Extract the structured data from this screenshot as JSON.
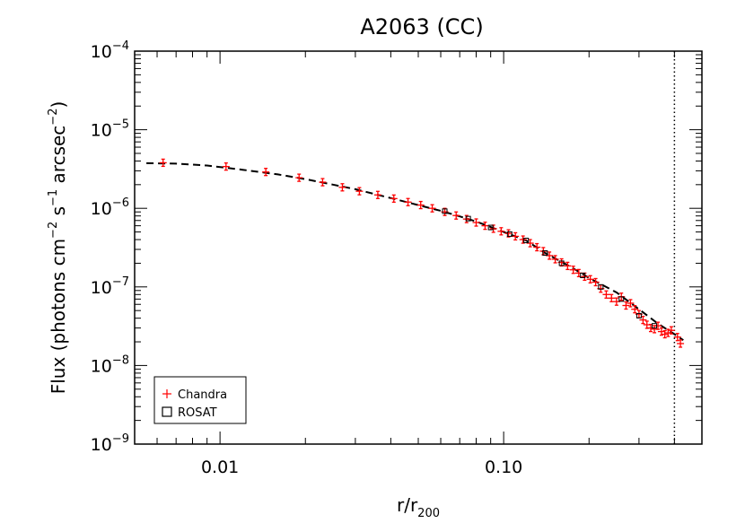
{
  "chart_data": {
    "type": "scatter",
    "title": "A2063 (CC)",
    "xlabel": {
      "main": "r/r",
      "sub": "200"
    },
    "ylabel": {
      "prefix": "Flux (photons cm",
      "e1": "−2",
      "mid1": " s",
      "e2": "−1",
      "mid2": " arcsec",
      "e3": "−2",
      "suffix": ")"
    },
    "x_scale": "log",
    "y_scale": "log",
    "xlim": [
      0.005,
      0.5
    ],
    "ylim": [
      1e-09,
      0.0001
    ],
    "x_ticks": [
      {
        "value": 0.01,
        "label": "0.01"
      },
      {
        "value": 0.1,
        "label": "0.10"
      }
    ],
    "y_ticks": [
      {
        "value": 1e-09,
        "base": "10",
        "exp": "−9"
      },
      {
        "value": 1e-08,
        "base": "10",
        "exp": "−8"
      },
      {
        "value": 1e-07,
        "base": "10",
        "exp": "−7"
      },
      {
        "value": 1e-06,
        "base": "10",
        "exp": "−6"
      },
      {
        "value": 1e-05,
        "base": "10",
        "exp": "−5"
      },
      {
        "value": 0.0001,
        "base": "10",
        "exp": "−4"
      }
    ],
    "vertical_line": {
      "x": 0.4,
      "style": "dotted"
    },
    "legend": {
      "position": "bottom-left",
      "entries": [
        {
          "label": "Chandra",
          "marker": "plus",
          "color": "#ff0000"
        },
        {
          "label": "ROSAT",
          "marker": "square",
          "color": "#000000"
        }
      ]
    },
    "series": [
      {
        "name": "Chandra",
        "marker": "plus",
        "color": "#ff0000",
        "x": [
          0.0063,
          0.0105,
          0.0145,
          0.019,
          0.023,
          0.027,
          0.031,
          0.036,
          0.041,
          0.046,
          0.051,
          0.056,
          0.062,
          0.068,
          0.074,
          0.08,
          0.086,
          0.092,
          0.098,
          0.104,
          0.11,
          0.117,
          0.124,
          0.131,
          0.138,
          0.145,
          0.152,
          0.16,
          0.168,
          0.176,
          0.184,
          0.193,
          0.202,
          0.211,
          0.22,
          0.23,
          0.24,
          0.25,
          0.26,
          0.27,
          0.28,
          0.29,
          0.3,
          0.31,
          0.32,
          0.33,
          0.34,
          0.35,
          0.36,
          0.37,
          0.38,
          0.39,
          0.41,
          0.42
        ],
        "y": [
          3.8e-06,
          3.4e-06,
          2.9e-06,
          2.45e-06,
          2.15e-06,
          1.85e-06,
          1.65e-06,
          1.48e-06,
          1.33e-06,
          1.2e-06,
          1.1e-06,
          1e-06,
          9e-07,
          8.1e-07,
          7.3e-07,
          6.6e-07,
          6e-07,
          5.5e-07,
          5.1e-07,
          4.8e-07,
          4.4e-07,
          4e-07,
          3.6e-07,
          3.2e-07,
          2.85e-07,
          2.5e-07,
          2.25e-07,
          2.05e-07,
          1.85e-07,
          1.65e-07,
          1.5e-07,
          1.35e-07,
          1.25e-07,
          1.15e-07,
          9.5e-08,
          8e-08,
          7.2e-08,
          6.5e-08,
          7.5e-08,
          5.8e-08,
          6.2e-08,
          5.2e-08,
          4.5e-08,
          3.8e-08,
          3.3e-08,
          3e-08,
          2.9e-08,
          3.2e-08,
          2.7e-08,
          2.5e-08,
          2.6e-08,
          2.8e-08,
          2.3e-08,
          1.9e-08
        ]
      },
      {
        "name": "ROSAT",
        "marker": "square",
        "color": "#000000",
        "x": [
          0.062,
          0.075,
          0.09,
          0.105,
          0.12,
          0.14,
          0.16,
          0.19,
          0.22,
          0.26,
          0.3,
          0.34
        ],
        "y": [
          9.2e-07,
          7.4e-07,
          5.7e-07,
          4.7e-07,
          3.9e-07,
          2.7e-07,
          2e-07,
          1.4e-07,
          1e-07,
          7e-08,
          4.3e-08,
          3.2e-08
        ]
      },
      {
        "name": "",
        "style": "dashed",
        "color": "#000000",
        "x": [
          0.0055,
          0.007,
          0.009,
          0.012,
          0.016,
          0.02,
          0.025,
          0.03,
          0.04,
          0.05,
          0.06,
          0.07,
          0.08,
          0.1,
          0.12,
          0.14,
          0.17,
          0.2,
          0.25,
          0.3,
          0.35,
          0.4,
          0.43
        ],
        "y": [
          3.75e-06,
          3.7e-06,
          3.5e-06,
          3.1e-06,
          2.7e-06,
          2.35e-06,
          2e-06,
          1.75e-06,
          1.35e-06,
          1.1e-06,
          9.3e-07,
          7.9e-07,
          6.8e-07,
          5e-07,
          3.9e-07,
          2.7e-07,
          1.85e-07,
          1.3e-07,
          8.5e-08,
          5.2e-08,
          3.4e-08,
          2.5e-08,
          2.1e-08
        ]
      }
    ]
  }
}
